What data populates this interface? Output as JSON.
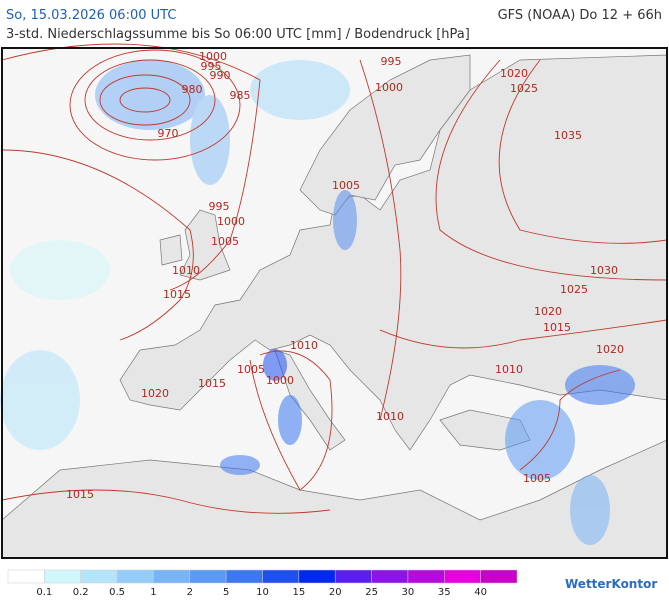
{
  "header": {
    "left": "So, 15.03.2026 06:00 UTC",
    "right": "GFS (NOAA) Do 12 + 66h",
    "subtitle": "3-std. Niederschlagssumme bis So 06:00 UTC [mm] / Bodendruck [hPa]"
  },
  "map": {
    "isobar_labels": [
      "1000",
      "995",
      "990",
      "980",
      "985",
      "970",
      "995",
      "1000",
      "1005",
      "1010",
      "1015",
      "995",
      "1000",
      "1020",
      "1025",
      "1035",
      "1005",
      "1030",
      "1025",
      "1020",
      "1015",
      "1020",
      "1010",
      "1005",
      "1000",
      "1015",
      "1020",
      "1010",
      "1010",
      "1015",
      "1005"
    ]
  },
  "legend": {
    "colors": [
      "#ffffff",
      "#d2f7fb",
      "#b4e4fa",
      "#96cdf8",
      "#78b4f6",
      "#5a99f4",
      "#3c78f2",
      "#1e50f0",
      "#0028ee",
      "#5a1eee",
      "#8c14e6",
      "#b40ade",
      "#e600e0",
      "#c800c8"
    ],
    "labels": [
      "0.1",
      "0.2",
      "0.5",
      "1",
      "2",
      "5",
      "10",
      "15",
      "20",
      "25",
      "30",
      "35",
      "40"
    ]
  },
  "logo": "WetterKontor"
}
